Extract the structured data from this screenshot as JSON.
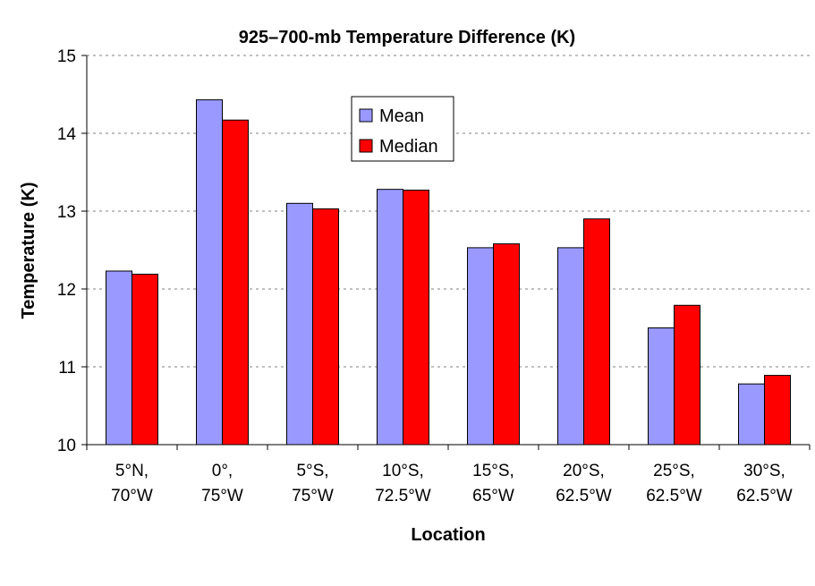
{
  "chart_data": {
    "type": "bar",
    "title": "925–700-mb Temperature Difference (K)",
    "xlabel": "Location",
    "ylabel": "Temperature (K)",
    "ylim": [
      10,
      15
    ],
    "yticks": [
      10,
      11,
      12,
      13,
      14,
      15
    ],
    "grid": true,
    "legend_position": "top-center",
    "categories": [
      [
        "5°N,",
        "70°W"
      ],
      [
        "0°,",
        "75°W"
      ],
      [
        "5°S,",
        "75°W"
      ],
      [
        "10°S,",
        "72.5°W"
      ],
      [
        "15°S,",
        "65°W"
      ],
      [
        "20°S,",
        "62.5°W"
      ],
      [
        "25°S,",
        "62.5°W"
      ],
      [
        "30°S,",
        "62.5°W"
      ]
    ],
    "series": [
      {
        "name": "Mean",
        "color": "#9999ff",
        "values": [
          12.23,
          14.43,
          13.1,
          13.28,
          12.53,
          12.53,
          11.5,
          10.78
        ]
      },
      {
        "name": "Median",
        "color": "#ff0000",
        "values": [
          12.19,
          14.17,
          13.03,
          13.27,
          12.58,
          12.9,
          11.79,
          10.89
        ]
      }
    ]
  }
}
